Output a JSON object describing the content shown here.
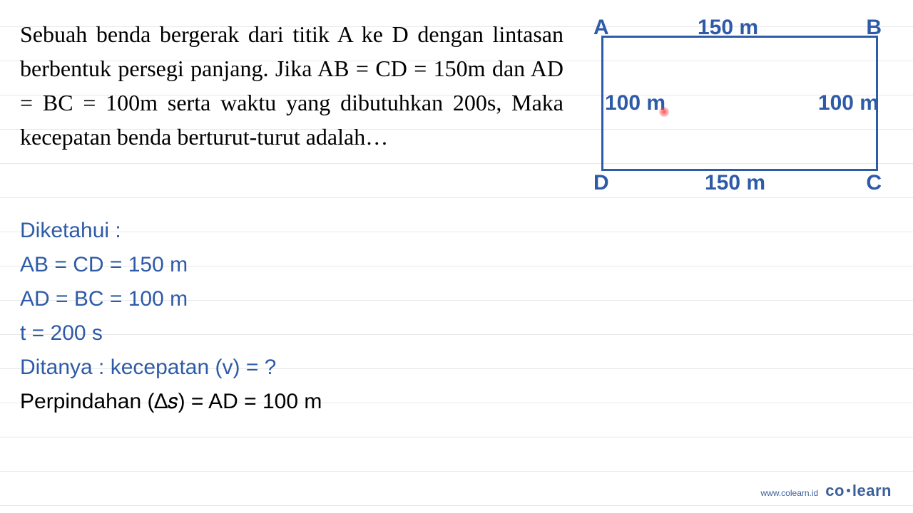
{
  "problem": {
    "text": "Sebuah benda bergerak dari titik A ke D dengan lintasan berbentuk persegi panjang. Jika AB = CD = 150m dan AD = BC = 100m serta waktu yang dibutuhkan 200s, Maka kecepatan benda berturut-turut adalah…"
  },
  "diagram": {
    "type": "rectangle",
    "corners": {
      "A": "A",
      "B": "B",
      "C": "C",
      "D": "D"
    },
    "labels": {
      "top": "150 m",
      "bottom": "150 m",
      "left": "100 m",
      "right": "100 m"
    },
    "colors": {
      "stroke": "#2e5ba8",
      "text": "#2e5ba8",
      "dot": "#ff3c3c"
    },
    "stroke_width": 3,
    "label_fontsize": 30
  },
  "solution": {
    "heading": "Diketahui :",
    "lines": [
      "AB = CD = 150 m",
      "AD = BC = 100 m",
      "t = 200 s"
    ],
    "asked": "Ditanya : kecepatan (v) = ?",
    "equation": "Perpindahan (∆𝑠) = AD = 100 m"
  },
  "footer": {
    "url": "www.colearn.id",
    "logo_left": "co",
    "logo_right": "learn"
  },
  "colors": {
    "text_black": "#000000",
    "text_blue": "#2e5ba8",
    "line": "#e8e8e8",
    "background": "#ffffff"
  }
}
